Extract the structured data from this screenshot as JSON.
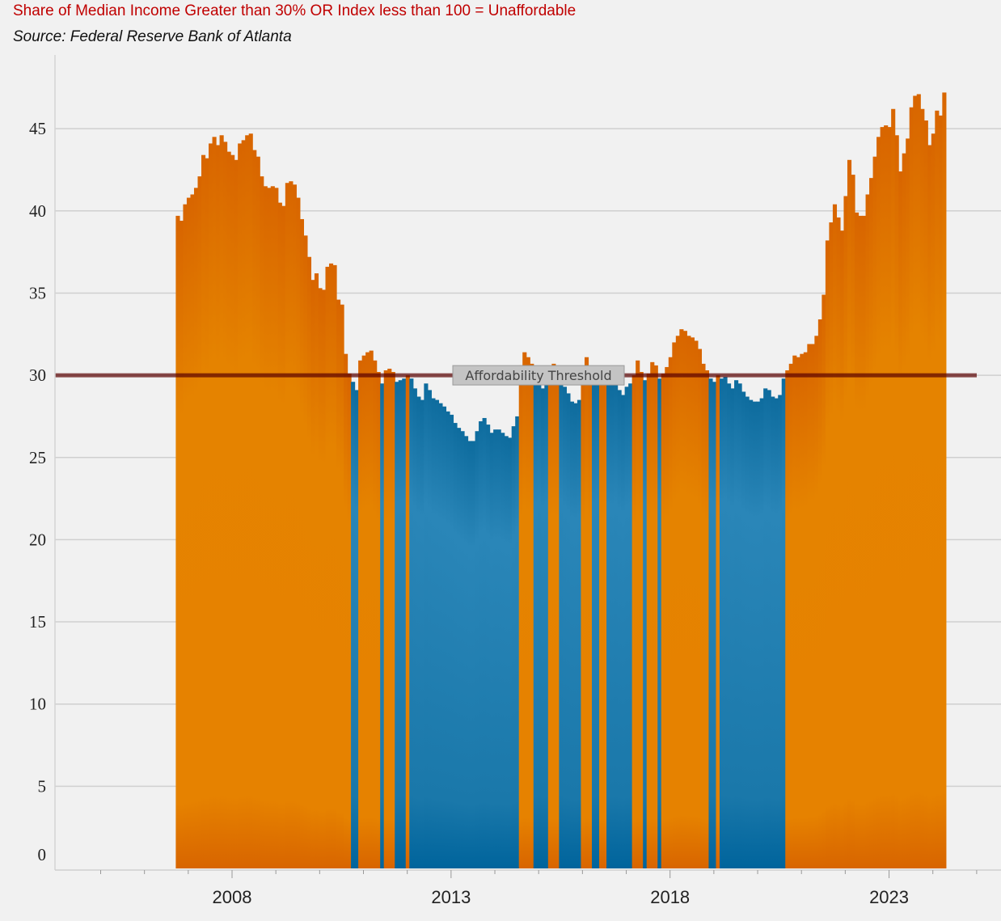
{
  "header": {
    "title": "Share of Median Income Greater than 30% OR Index less than 100  = Unaffordable",
    "source": "Source: Federal Reserve Bank of Atlanta"
  },
  "colors": {
    "unaffordable": "#e58400",
    "affordable": "#1f7fb0",
    "threshold": "#5a0000",
    "grid": "#d0d0d0"
  },
  "chart_data": {
    "type": "bar",
    "title": "",
    "xlabel": "",
    "ylabel": "",
    "ylim": [
      0,
      48
    ],
    "yticks": [
      0,
      5,
      10,
      15,
      20,
      25,
      30,
      35,
      40,
      45
    ],
    "xticks": [
      2008,
      2013,
      2018,
      2023
    ],
    "x_start": 2006.0,
    "x_step": 0.08333,
    "threshold": {
      "value": 30,
      "label": "Affordability Threshold"
    },
    "grid": true,
    "legend": "none",
    "values": [
      39.7,
      39.4,
      40.4,
      40.8,
      41.0,
      41.4,
      42.1,
      43.4,
      43.2,
      44.1,
      44.5,
      44.0,
      44.6,
      44.2,
      43.6,
      43.4,
      43.1,
      44.1,
      44.3,
      44.6,
      44.7,
      43.7,
      43.3,
      42.1,
      41.5,
      41.4,
      41.5,
      41.4,
      40.5,
      40.3,
      41.7,
      41.8,
      41.6,
      40.8,
      39.5,
      38.5,
      37.2,
      35.8,
      36.2,
      35.3,
      35.2,
      36.6,
      36.8,
      36.7,
      34.6,
      34.3,
      31.3,
      30.1,
      29.6,
      29.1,
      30.9,
      31.2,
      31.4,
      31.5,
      30.9,
      30.2,
      29.5,
      30.3,
      30.4,
      30.2,
      29.6,
      29.7,
      29.8,
      30.0,
      29.8,
      29.2,
      28.7,
      28.5,
      29.5,
      29.1,
      28.6,
      28.5,
      28.3,
      28.1,
      27.8,
      27.6,
      27.1,
      26.8,
      26.6,
      26.3,
      26.0,
      26.0,
      26.6,
      27.2,
      27.4,
      27.0,
      26.5,
      26.7,
      26.7,
      26.5,
      26.3,
      26.2,
      26.9,
      27.5,
      30.6,
      31.4,
      31.1,
      30.7,
      29.5,
      29.8,
      29.2,
      29.5,
      30.5,
      30.7,
      30.6,
      29.8,
      29.3,
      28.9,
      28.4,
      28.3,
      28.5,
      30.0,
      31.1,
      30.3,
      29.5,
      29.8,
      30.3,
      30.4,
      29.5,
      29.4,
      29.6,
      29.1,
      28.8,
      29.3,
      29.5,
      30.0,
      30.9,
      30.2,
      29.7,
      30.1,
      30.8,
      30.6,
      29.8,
      30.1,
      30.5,
      31.1,
      32.0,
      32.4,
      32.8,
      32.7,
      32.4,
      32.3,
      32.1,
      31.6,
      30.7,
      30.3,
      29.8,
      29.6,
      30.0,
      29.8,
      29.9,
      29.5,
      29.2,
      29.7,
      29.5,
      29.0,
      28.7,
      28.5,
      28.4,
      28.4,
      28.6,
      29.2,
      29.1,
      28.7,
      28.6,
      28.8,
      29.8,
      30.3,
      30.7,
      31.2,
      31.1,
      31.3,
      31.4,
      31.9,
      31.9,
      32.4,
      33.4,
      34.9,
      38.2,
      39.3,
      40.4,
      39.6,
      38.8,
      40.9,
      43.1,
      42.2,
      39.9,
      39.7,
      39.7,
      41.0,
      42.0,
      43.3,
      44.5,
      45.1,
      45.2,
      45.1,
      46.2,
      44.6,
      42.4,
      43.5,
      44.4,
      46.3,
      47.0,
      47.1,
      46.2,
      45.5,
      44.0,
      44.7,
      46.1,
      45.8,
      47.2
    ]
  }
}
